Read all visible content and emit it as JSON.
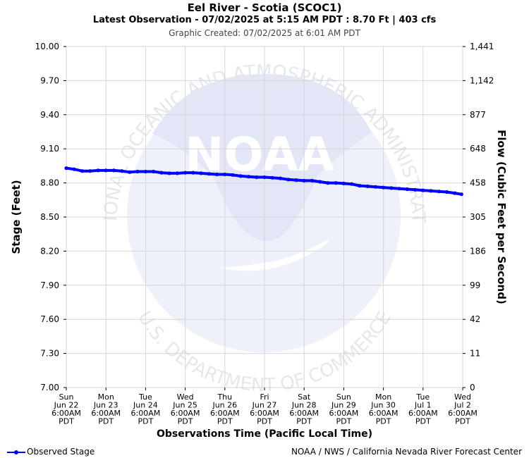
{
  "header": {
    "title": "Eel River - Scotia (SCOC1)",
    "subtitle": "Latest Observation - 07/02/2025 at 5:15 AM PDT : 8.70 Ft | 403 cfs",
    "created": "Graphic Created: 07/02/2025 at 6:01 AM PDT"
  },
  "watermark": {
    "logo_text": "NOAA",
    "ring_top": "NATIONAL OCEANIC AND ATMOSPHERIC ADMINISTRATION",
    "ring_bottom": "U.S. DEPARTMENT OF COMMERCE",
    "color": "#e8ecf8"
  },
  "legend": {
    "label": "Observed Stage",
    "color": "#0000ff"
  },
  "footer": {
    "credit": "NOAA / NWS / California Nevada River Forecast Center"
  },
  "chart_data": {
    "type": "line",
    "xlabel": "Observations Time (Pacific Local Time)",
    "ylabel": "Stage (Feet)",
    "y2label": "Flow (Cubic Feet per Second)",
    "ylim": [
      7.0,
      10.0
    ],
    "yticks": [
      7.0,
      7.3,
      7.6,
      7.9,
      8.2,
      8.5,
      8.8,
      9.1,
      9.4,
      9.7,
      10.0
    ],
    "yticks_labels": [
      "7.00",
      "7.30",
      "7.60",
      "7.90",
      "8.20",
      "8.50",
      "8.80",
      "9.10",
      "9.40",
      "9.70",
      "10.00"
    ],
    "y2ticks_labels": [
      "0",
      "11",
      "42",
      "99",
      "186",
      "305",
      "458",
      "648",
      "877",
      "1,142",
      "1,441"
    ],
    "xlim": [
      0,
      10
    ],
    "xticks": [
      {
        "day": "Sun",
        "date": "Jun 22",
        "time": "6:00AM",
        "tz": "PDT"
      },
      {
        "day": "Mon",
        "date": "Jun 23",
        "time": "6:00AM",
        "tz": "PDT"
      },
      {
        "day": "Tue",
        "date": "Jun 24",
        "time": "6:00AM",
        "tz": "PDT"
      },
      {
        "day": "Wed",
        "date": "Jun 25",
        "time": "6:00AM",
        "tz": "PDT"
      },
      {
        "day": "Thu",
        "date": "Jun 26",
        "time": "6:00AM",
        "tz": "PDT"
      },
      {
        "day": "Fri",
        "date": "Jun 27",
        "time": "6:00AM",
        "tz": "PDT"
      },
      {
        "day": "Sat",
        "date": "Jun 28",
        "time": "6:00AM",
        "tz": "PDT"
      },
      {
        "day": "Sun",
        "date": "Jun 29",
        "time": "6:00AM",
        "tz": "PDT"
      },
      {
        "day": "Mon",
        "date": "Jun 30",
        "time": "6:00AM",
        "tz": "PDT"
      },
      {
        "day": "Tue",
        "date": "Jul 1",
        "time": "6:00AM",
        "tz": "PDT"
      },
      {
        "day": "Wed",
        "date": "Jul 2",
        "time": "6:00AM",
        "tz": "PDT"
      }
    ],
    "grid": true,
    "legend_position": "bottom-left",
    "series": [
      {
        "name": "Observed Stage",
        "color": "#0000ff",
        "x": [
          0,
          0.2,
          0.4,
          0.6,
          0.8,
          1.0,
          1.2,
          1.4,
          1.6,
          1.8,
          2.0,
          2.2,
          2.4,
          2.6,
          2.8,
          3.0,
          3.2,
          3.4,
          3.6,
          3.8,
          4.0,
          4.2,
          4.4,
          4.6,
          4.8,
          5.0,
          5.2,
          5.4,
          5.6,
          5.8,
          6.0,
          6.2,
          6.4,
          6.6,
          6.8,
          7.0,
          7.2,
          7.4,
          7.6,
          7.8,
          8.0,
          8.2,
          8.4,
          8.6,
          8.8,
          9.0,
          9.2,
          9.4,
          9.6,
          9.8,
          9.97
        ],
        "y": [
          8.93,
          8.92,
          8.905,
          8.905,
          8.91,
          8.91,
          8.91,
          8.905,
          8.895,
          8.9,
          8.9,
          8.9,
          8.89,
          8.885,
          8.885,
          8.89,
          8.89,
          8.885,
          8.88,
          8.875,
          8.875,
          8.87,
          8.86,
          8.855,
          8.85,
          8.85,
          8.845,
          8.84,
          8.83,
          8.825,
          8.82,
          8.82,
          8.81,
          8.8,
          8.8,
          8.795,
          8.79,
          8.775,
          8.77,
          8.765,
          8.76,
          8.755,
          8.75,
          8.745,
          8.74,
          8.735,
          8.73,
          8.725,
          8.72,
          8.71,
          8.7
        ]
      }
    ]
  }
}
